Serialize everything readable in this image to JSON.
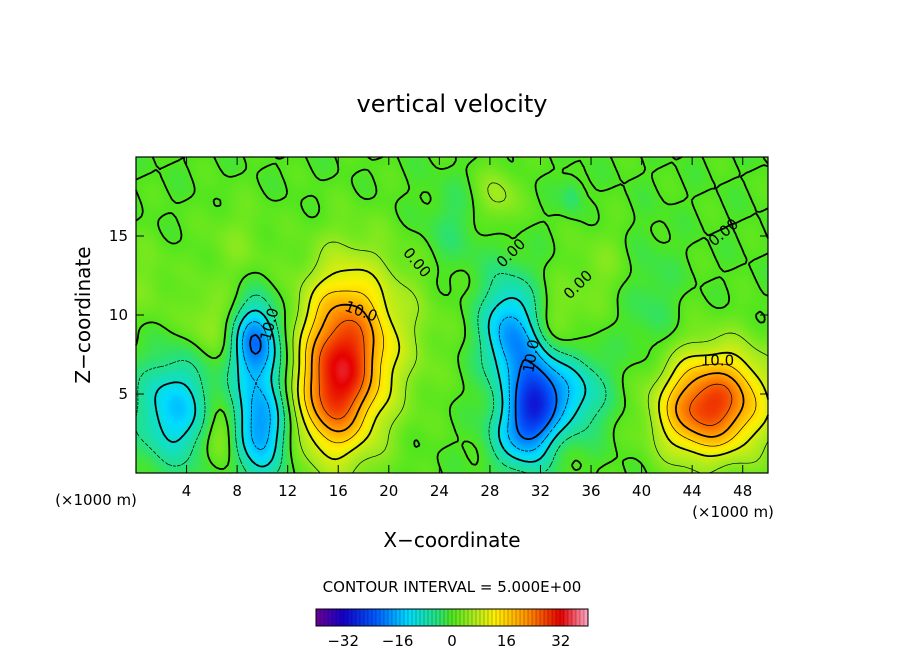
{
  "chart_data": {
    "type": "heatmap",
    "title": "vertical velocity",
    "xlabel": "X−coordinate",
    "ylabel": "Z−coordinate",
    "x_unit_left": "(×1000 m)",
    "x_unit_right": "(×1000 m)",
    "xlim": [
      0,
      50
    ],
    "ylim": [
      0,
      20
    ],
    "x_ticks": [
      4,
      8,
      12,
      16,
      20,
      24,
      28,
      32,
      36,
      40,
      44,
      48
    ],
    "y_ticks": [
      5,
      10,
      15
    ],
    "contour_interval_text": "CONTOUR INTERVAL = 5.000E+00",
    "colorbar": {
      "min": -40,
      "max": 40,
      "ticks": [
        -32,
        -16,
        0,
        16,
        32
      ]
    },
    "contour_labels": [
      {
        "text": "10.0",
        "x": 17.8,
        "y": 10.2,
        "rot": 20
      },
      {
        "text": "10.0",
        "x": 10.6,
        "y": 9.4,
        "rot": -75
      },
      {
        "text": "10.0",
        "x": 31.3,
        "y": 7.4,
        "rot": -80
      },
      {
        "text": "10.0",
        "x": 46.0,
        "y": 7.1,
        "rot": 0
      },
      {
        "text": "0.00",
        "x": 22.2,
        "y": 13.3,
        "rot": 50
      },
      {
        "text": "0.00",
        "x": 29.7,
        "y": 13.9,
        "rot": -45
      },
      {
        "text": "0.00",
        "x": 35.0,
        "y": 11.9,
        "rot": -45
      },
      {
        "text": "0.00",
        "x": 46.5,
        "y": 15.2,
        "rot": -40
      }
    ],
    "features": [
      {
        "x": 16.3,
        "z": 7.0,
        "amp": 27,
        "sx": 2.3,
        "sz": 3.8
      },
      {
        "x": 15.0,
        "z": 4.3,
        "amp": 8,
        "sx": 1.6,
        "sz": 2.2
      },
      {
        "x": 19.5,
        "z": 9.0,
        "amp": 6,
        "sx": 3.0,
        "sz": 3.5
      },
      {
        "x": 46.3,
        "z": 4.5,
        "amp": 24,
        "sx": 2.7,
        "sz": 2.3
      },
      {
        "x": 43.5,
        "z": 3.8,
        "amp": 10,
        "sx": 2.0,
        "sz": 2.0
      },
      {
        "x": 3.0,
        "z": 4.0,
        "amp": -14,
        "sx": 2.0,
        "sz": 2.3
      },
      {
        "x": 9.5,
        "z": 8.3,
        "amp": -20,
        "sx": 1.3,
        "sz": 1.8
      },
      {
        "x": 9.8,
        "z": 3.0,
        "amp": -18,
        "sx": 1.5,
        "sz": 2.3
      },
      {
        "x": 6.8,
        "z": 2.5,
        "amp": 8,
        "sx": 0.9,
        "sz": 1.4
      },
      {
        "x": 5.8,
        "z": 9.5,
        "amp": 5,
        "sx": 1.5,
        "sz": 1.6
      },
      {
        "x": 29.5,
        "z": 8.8,
        "amp": -17,
        "sx": 1.5,
        "sz": 2.4
      },
      {
        "x": 31.5,
        "z": 4.5,
        "amp": -19,
        "sx": 1.2,
        "sz": 2.4
      },
      {
        "x": 34.0,
        "z": 5.0,
        "amp": -14,
        "sx": 2.0,
        "sz": 1.8
      },
      {
        "x": 30.0,
        "z": 2.5,
        "amp": -11,
        "sx": 1.5,
        "sz": 1.6
      },
      {
        "x": 28.6,
        "z": 17.5,
        "amp": 6,
        "sx": 1.2,
        "sz": 1.3
      },
      {
        "x": 8.0,
        "z": 14.5,
        "amp": 3,
        "sx": 2.0,
        "sz": 2.0
      },
      {
        "x": 25.0,
        "z": 15.5,
        "amp": -3,
        "sx": 1.8,
        "sz": 2.0
      },
      {
        "x": 37.0,
        "z": 13.0,
        "amp": 3,
        "sx": 2.0,
        "sz": 2.0
      },
      {
        "x": 33.5,
        "z": 9.5,
        "amp": 4,
        "sx": 1.4,
        "sz": 1.6
      },
      {
        "x": 34.5,
        "z": 17.5,
        "amp": -4,
        "sx": 0.6,
        "sz": 0.8
      },
      {
        "x": 40.5,
        "z": 11.0,
        "amp": -3,
        "sx": 1.5,
        "sz": 3.0
      },
      {
        "x": 1.0,
        "z": 12.0,
        "amp": 3,
        "sx": 1.5,
        "sz": 2.0
      }
    ]
  }
}
